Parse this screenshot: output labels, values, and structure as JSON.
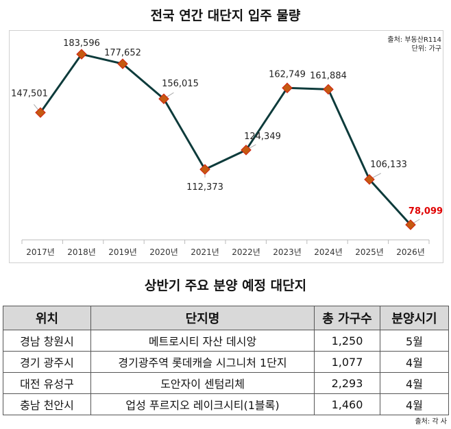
{
  "chart_data": {
    "type": "line",
    "title": "전국 연간 대단지 입주 물량",
    "categories": [
      "2017년",
      "2018년",
      "2019년",
      "2020년",
      "2021년",
      "2022년",
      "2023년",
      "2024년",
      "2025년",
      "2026년"
    ],
    "values": [
      147501,
      183596,
      177652,
      156015,
      112373,
      124349,
      162749,
      161884,
      106133,
      78099
    ],
    "labels": [
      "147,501",
      "183,596",
      "177,652",
      "156,015",
      "112,373",
      "124,349",
      "162,749",
      "161,884",
      "106,133",
      "78,099"
    ],
    "line_color": "#0d3b3b",
    "marker_color": "#c55a11",
    "highlight_color": "#e00000",
    "grid": false,
    "source": "출처: 부동산R114",
    "unit": "단위: 가구"
  },
  "table": {
    "title": "상반기 주요 분양 예정 대단지",
    "headers": [
      "위치",
      "단지명",
      "총 가구수",
      "분양시기"
    ],
    "rows": [
      [
        "경남 창원시",
        "메트로시티 자산 데시앙",
        "1,250",
        "5월"
      ],
      [
        "경기 광주시",
        "경기광주역 롯데캐슬 시그니처 1단지",
        "1,077",
        "4월"
      ],
      [
        "대전 유성구",
        "도안자이 센텀리체",
        "2,293",
        "4월"
      ],
      [
        "충남 천안시",
        "업성 푸르지오 레이크시티(1블록)",
        "1,460",
        "4월"
      ]
    ],
    "source": "출처: 각 사"
  }
}
